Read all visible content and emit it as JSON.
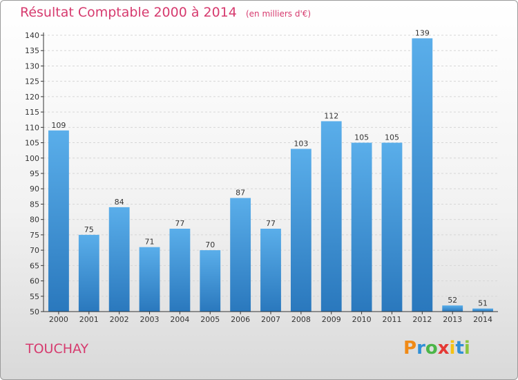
{
  "header": {
    "title": "Résultat Comptable 2000 à 2014",
    "subtitle": "(en milliers d'€)"
  },
  "footer": {
    "commune": "TOUCHAY",
    "logo_text": "Proxiti"
  },
  "colors": {
    "title": "#d63a6e",
    "bar_light": "#5aaeea",
    "bar_dark": "#2a78bd",
    "axis": "#333333"
  },
  "chart_data": {
    "type": "bar",
    "categories": [
      "2000",
      "2001",
      "2002",
      "2003",
      "2004",
      "2005",
      "2006",
      "2007",
      "2008",
      "2009",
      "2010",
      "2011",
      "2012",
      "2013",
      "2014"
    ],
    "values": [
      109,
      75,
      84,
      71,
      77,
      70,
      87,
      77,
      103,
      112,
      105,
      105,
      139,
      52,
      51
    ],
    "ylim": [
      50,
      140
    ],
    "yticks": [
      50,
      55,
      60,
      65,
      70,
      75,
      80,
      85,
      90,
      95,
      100,
      105,
      110,
      115,
      120,
      125,
      130,
      135,
      140
    ],
    "grid": true,
    "legend": "none"
  }
}
